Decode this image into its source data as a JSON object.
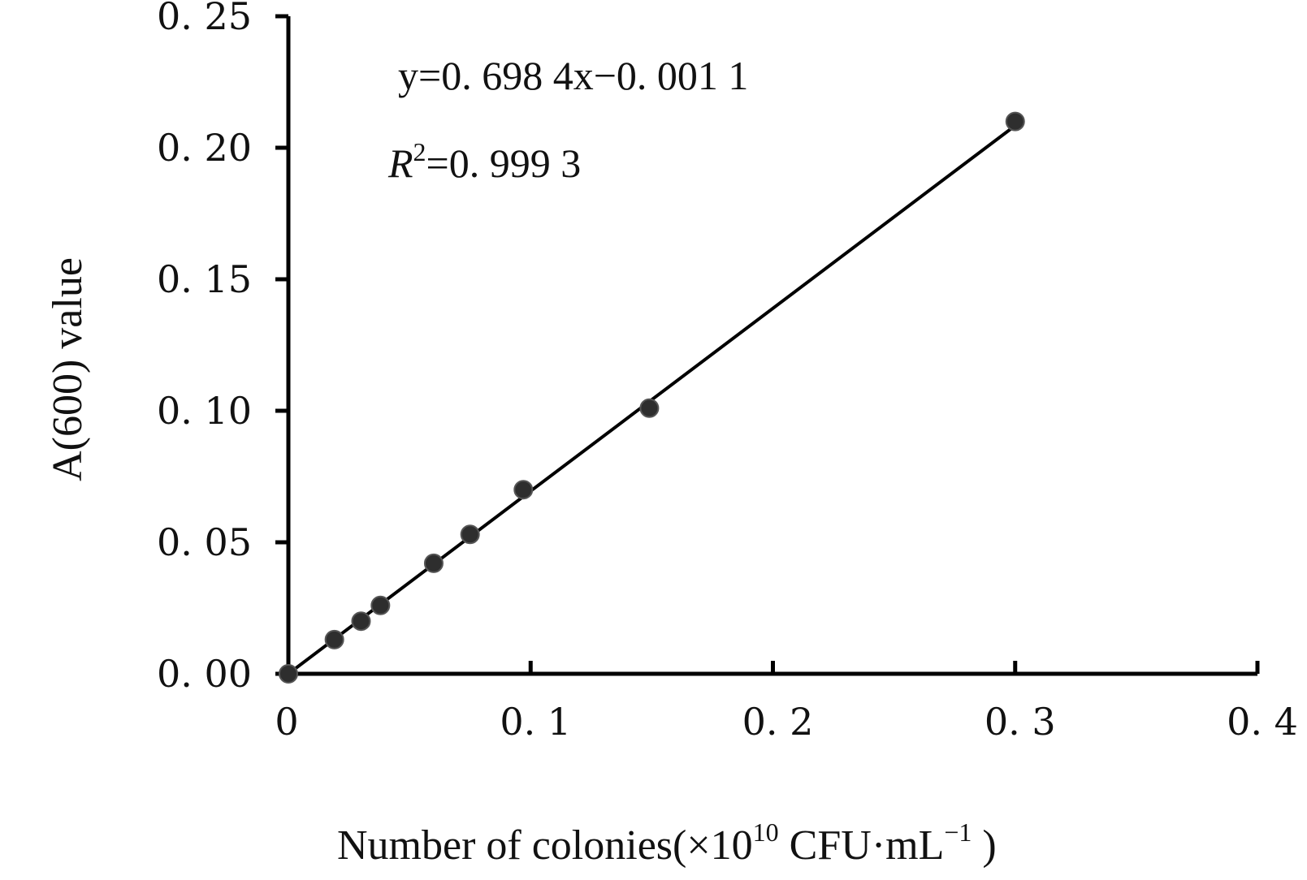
{
  "chart_data": {
    "type": "scatter",
    "xlabel": {
      "prefix": "Number of colonies(",
      "times": "×",
      "base": "10",
      "exp": "10",
      "unit_a": " CFU",
      "dot": "·",
      "unit_b": "mL",
      "unit_exp": "−1",
      "suffix": " )"
    },
    "ylabel": "A(600) value",
    "xlim": [
      0,
      0.4
    ],
    "ylim": [
      0,
      0.25
    ],
    "x_ticks": [
      0,
      0.1,
      0.2,
      0.3,
      0.4
    ],
    "x_tick_labels": [
      "0",
      "0. 1",
      "0. 2",
      "0. 3",
      "0. 4"
    ],
    "y_ticks": [
      0,
      0.05,
      0.1,
      0.15,
      0.2,
      0.25
    ],
    "y_tick_labels": [
      "0. 00",
      "0. 05",
      "0. 10",
      "0. 15",
      "0. 20",
      "0. 25"
    ],
    "grid": false,
    "series": [
      {
        "points": [
          {
            "x": 0,
            "y": 0
          },
          {
            "x": 0.019,
            "y": 0.013
          },
          {
            "x": 0.03,
            "y": 0.02
          },
          {
            "x": 0.038,
            "y": 0.026
          },
          {
            "x": 0.06,
            "y": 0.042
          },
          {
            "x": 0.075,
            "y": 0.053
          },
          {
            "x": 0.097,
            "y": 0.07
          },
          {
            "x": 0.149,
            "y": 0.101
          },
          {
            "x": 0.3,
            "y": 0.21
          }
        ]
      }
    ],
    "trendline": {
      "slope": 0.6984,
      "intercept": -0.0011,
      "x_range": [
        0,
        0.3
      ]
    },
    "annotations": {
      "equation": "y=0. 698  4x−0. 001  1",
      "r2_var": "R",
      "r2_exp": "2",
      "r2_rest": "=0. 999  3"
    },
    "colors": {
      "point": "#2e2e2e",
      "axis": "#000000",
      "line": "#000000"
    }
  }
}
